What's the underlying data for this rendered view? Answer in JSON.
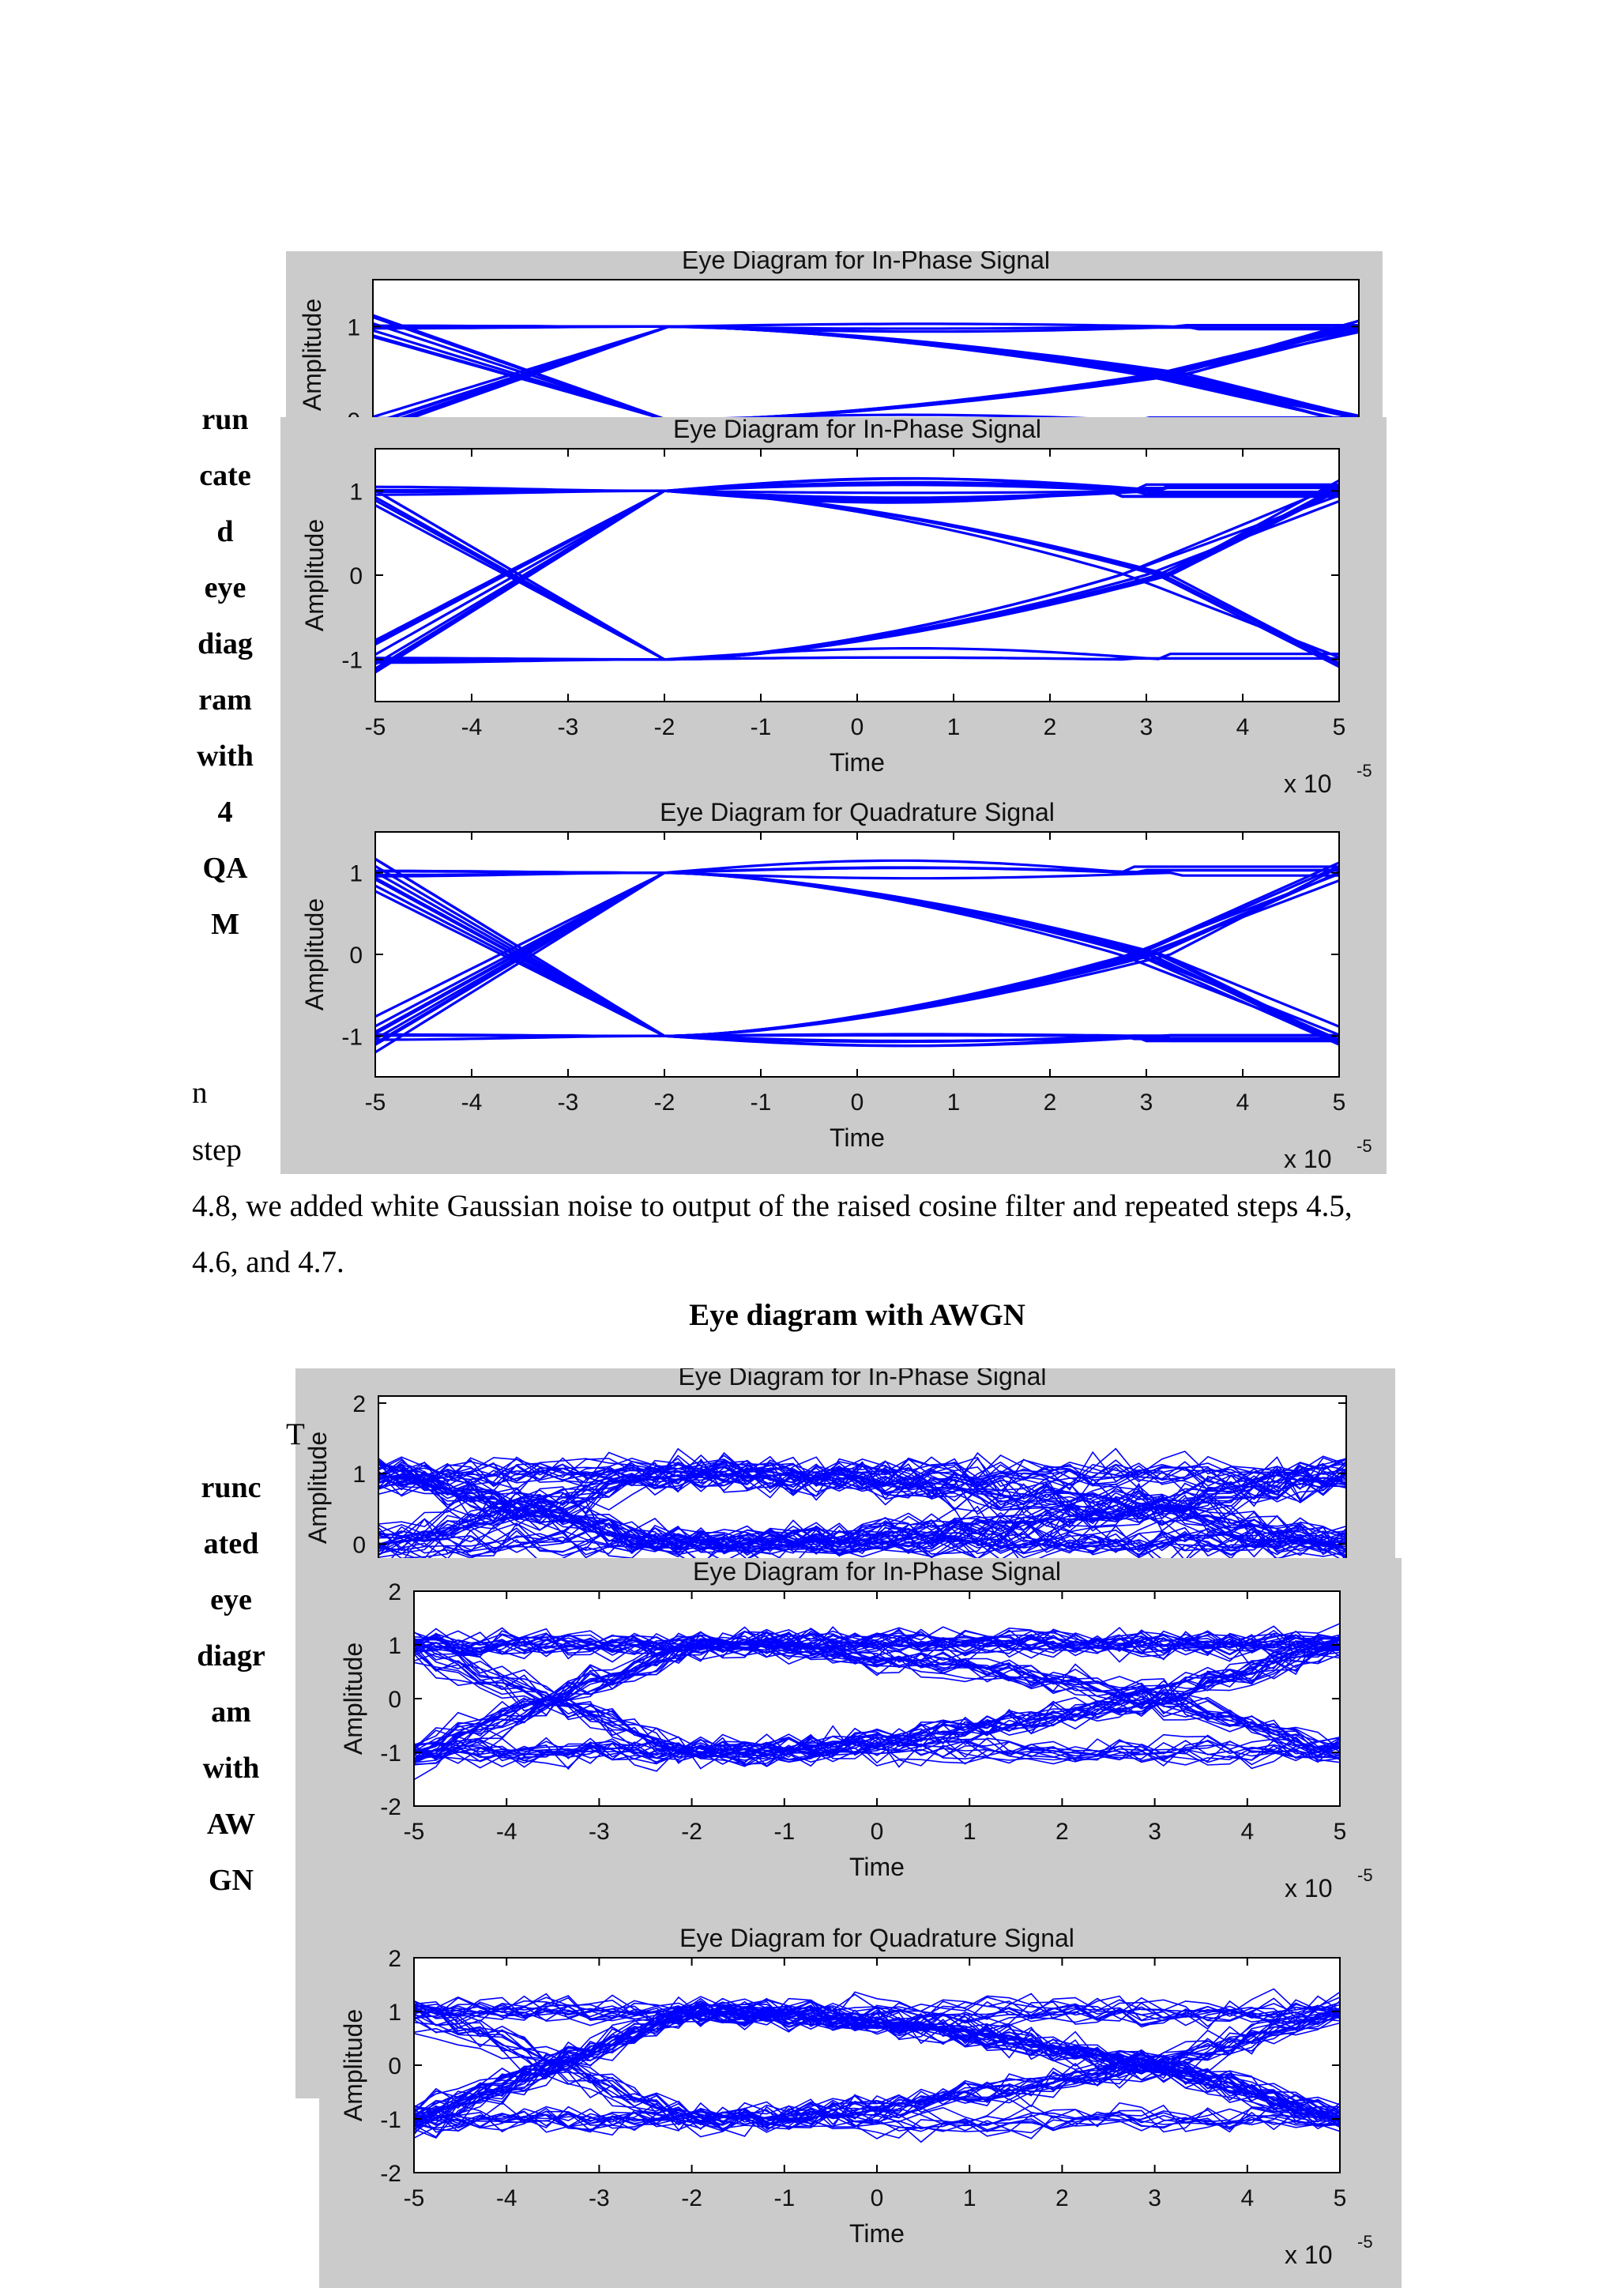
{
  "page": {
    "side_caption_1": [
      "run",
      "cate",
      "d",
      "eye",
      "diag",
      "ram",
      "with",
      "4",
      "QA",
      "M"
    ],
    "side_text_lines": [
      "n",
      "step"
    ],
    "paragraph_line_1": "4.8, we added white Gaussian noise to output of the raised cosine filter and repeated steps 4.5,",
    "paragraph_line_2": "4.6, and 4.7.",
    "heading_awgn": "Eye diagram with AWGN",
    "side_caption_2": [
      "runc",
      "ated",
      "eye",
      "diagr",
      "am",
      "with",
      "AW",
      "GN"
    ],
    "stray_letter": "T"
  },
  "labels": {
    "inphase_title": "Eye Diagram for In-Phase Signal",
    "quadrature_title": "Eye Diagram for Quadrature Signal",
    "amplitude": "Amplitude",
    "time": "Time",
    "exponent_base": "x 10",
    "exponent_power": "-5"
  },
  "chart_data": [
    {
      "id": "clean-inphase-back",
      "type": "line",
      "chart_kind": "eye diagram",
      "title": "Eye Diagram for In-Phase Signal",
      "xlabel": "Time",
      "ylabel": "Amplitude",
      "x_scale_note": "x 10^-5",
      "xlim": [
        -5,
        5
      ],
      "ylim": [
        -0.1,
        1.5
      ],
      "yticks": [
        0,
        1
      ],
      "levels": [
        1,
        0
      ],
      "noise": 0,
      "crossing_x": [
        -2,
        3
      ],
      "color": "#0000ff",
      "partially_covered": true
    },
    {
      "id": "clean-inphase",
      "type": "line",
      "chart_kind": "eye diagram",
      "title": "Eye Diagram for In-Phase Signal",
      "xlabel": "Time",
      "ylabel": "Amplitude",
      "x_scale_note": "x 10^-5",
      "xlim": [
        -5,
        5
      ],
      "ylim": [
        -1.5,
        1.5
      ],
      "xticks": [
        -5,
        -4,
        -3,
        -2,
        -1,
        0,
        1,
        2,
        3,
        4,
        5
      ],
      "yticks": [
        -1,
        0,
        1
      ],
      "levels": [
        1,
        -1
      ],
      "noise": 0,
      "crossing_x": [
        -2,
        3
      ],
      "color": "#0000ff"
    },
    {
      "id": "clean-quadrature",
      "type": "line",
      "chart_kind": "eye diagram",
      "title": "Eye Diagram for Quadrature Signal",
      "xlabel": "Time",
      "ylabel": "Amplitude",
      "x_scale_note": "x 10^-5",
      "xlim": [
        -5,
        5
      ],
      "ylim": [
        -1.5,
        1.5
      ],
      "xticks": [
        -5,
        -4,
        -3,
        -2,
        -1,
        0,
        1,
        2,
        3,
        4,
        5
      ],
      "yticks": [
        -1,
        0,
        1
      ],
      "levels": [
        1,
        -1
      ],
      "noise": 0,
      "crossing_x": [
        -2,
        3
      ],
      "color": "#0000ff"
    },
    {
      "id": "awgn-inphase-back",
      "type": "line",
      "chart_kind": "eye diagram",
      "title": "Eye Diagram for In-Phase Signal",
      "xlabel": "Time",
      "ylabel": "Amplitude",
      "x_scale_note": "x 10^-5",
      "xlim": [
        -5,
        5
      ],
      "ylim": [
        -0.5,
        2.1
      ],
      "yticks": [
        0,
        1,
        2
      ],
      "levels": [
        1,
        0
      ],
      "noise": 0.3,
      "crossing_x": [
        -2,
        3
      ],
      "color": "#0000ff",
      "partially_covered": true
    },
    {
      "id": "awgn-inphase",
      "type": "line",
      "chart_kind": "eye diagram",
      "title": "Eye Diagram for In-Phase Signal",
      "xlabel": "Time",
      "ylabel": "Amplitude",
      "x_scale_note": "x 10^-5",
      "xlim": [
        -5,
        5
      ],
      "ylim": [
        -2,
        2
      ],
      "xticks": [
        -5,
        -4,
        -3,
        -2,
        -1,
        0,
        1,
        2,
        3,
        4,
        5
      ],
      "yticks": [
        -2,
        -1,
        0,
        1,
        2
      ],
      "levels": [
        1,
        -1
      ],
      "noise": 0.3,
      "crossing_x": [
        -2,
        3
      ],
      "color": "#0000ff"
    },
    {
      "id": "awgn-quadrature",
      "type": "line",
      "chart_kind": "eye diagram",
      "title": "Eye Diagram for Quadrature Signal",
      "xlabel": "Time",
      "ylabel": "Amplitude",
      "x_scale_note": "x 10^-5",
      "xlim": [
        -5,
        5
      ],
      "ylim": [
        -2,
        2
      ],
      "xticks": [
        -5,
        -4,
        -3,
        -2,
        -1,
        0,
        1,
        2,
        3,
        4,
        5
      ],
      "yticks": [
        -2,
        -1,
        0,
        1,
        2
      ],
      "levels": [
        1,
        -1
      ],
      "noise": 0.3,
      "crossing_x": [
        -2,
        3
      ],
      "color": "#0000ff"
    }
  ]
}
